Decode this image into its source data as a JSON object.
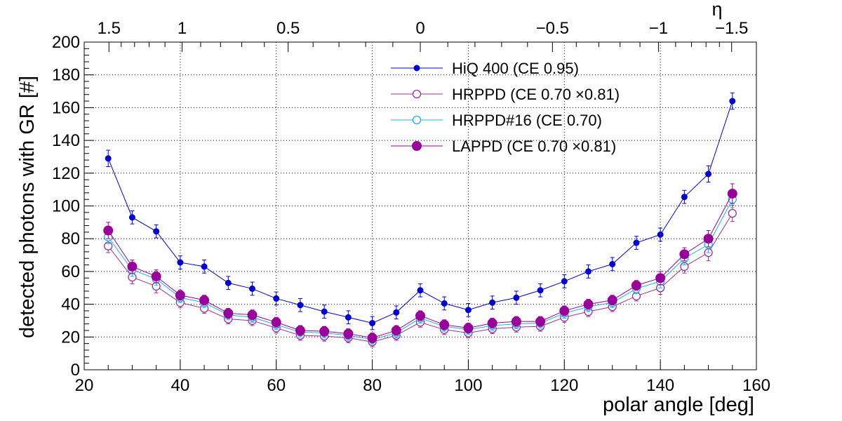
{
  "chart_data": {
    "type": "scatter",
    "xlabel": "polar angle [deg]",
    "ylabel": "detected photons with GR [#]",
    "top_axis_label": "η",
    "xlim": [
      20,
      160
    ],
    "ylim": [
      0,
      200
    ],
    "x_ticks": [
      "20",
      "40",
      "60",
      "80",
      "100",
      "120",
      "140",
      "160"
    ],
    "y_ticks": [
      "0",
      "20",
      "40",
      "60",
      "80",
      "100",
      "120",
      "140",
      "160",
      "180",
      "200"
    ],
    "top_ticks": [
      {
        "label": "1.5",
        "eta": 1.5
      },
      {
        "label": "1",
        "eta": 1.0
      },
      {
        "label": "0.5",
        "eta": 0.5
      },
      {
        "label": "0",
        "eta": 0.0
      },
      {
        "label": "−0.5",
        "eta": -0.5
      },
      {
        "label": "−1",
        "eta": -1.0
      },
      {
        "label": "−1.5",
        "eta": -1.5
      }
    ],
    "grid": true,
    "legend_position": "top-center",
    "x": [
      25,
      30,
      35,
      40,
      45,
      50,
      55,
      60,
      65,
      70,
      75,
      80,
      85,
      90,
      95,
      100,
      105,
      110,
      115,
      120,
      125,
      130,
      135,
      140,
      145,
      150,
      155
    ],
    "series": [
      {
        "name": "HiQ 400 (CE 0.95)",
        "color": "#0000cc",
        "marker": "filled-small",
        "values": [
          129,
          93,
          84.5,
          65.5,
          63,
          53,
          49.5,
          43.5,
          39.5,
          35.5,
          32,
          28.5,
          35,
          48.5,
          40.5,
          36.5,
          41,
          44,
          48.5,
          54,
          60,
          64.5,
          77.5,
          82.5,
          105.5,
          119.5,
          164
        ],
        "errors": [
          5,
          4,
          4,
          4,
          4,
          4,
          4,
          4,
          4,
          4,
          4,
          4,
          4,
          4,
          4,
          4,
          4,
          4,
          4,
          4,
          4,
          4,
          4,
          4,
          4,
          5,
          5
        ]
      },
      {
        "name": "HRPPD (CE 0.70  ×0.81)",
        "color": "#993399",
        "marker": "open",
        "values": [
          75.5,
          56.5,
          51,
          41,
          37.5,
          31,
          30,
          25.5,
          21,
          20.5,
          19.5,
          17,
          21,
          29,
          24.5,
          22.5,
          25,
          26,
          26.5,
          32,
          35.5,
          38.5,
          45,
          50,
          63,
          71.5,
          95.5
        ],
        "errors": [
          4,
          4,
          4,
          3,
          3,
          3,
          3,
          3,
          3,
          3,
          3,
          3,
          3,
          3,
          3,
          3,
          3,
          3,
          3,
          3,
          3,
          3,
          3,
          4,
          4,
          5,
          5
        ]
      },
      {
        "name": "HRPPD#16 (CE 0.70)",
        "color": "#1fb0e0",
        "marker": "open",
        "values": [
          81,
          61,
          55.5,
          44,
          41,
          33.5,
          32,
          27.5,
          23,
          22.5,
          21,
          18.5,
          22.5,
          31.5,
          26.5,
          24.5,
          27,
          28,
          28.5,
          34.5,
          38.5,
          41,
          49.5,
          54,
          68,
          76.5,
          104
        ],
        "errors": [
          4,
          4,
          4,
          3,
          3,
          3,
          3,
          3,
          3,
          3,
          3,
          3,
          3,
          3,
          3,
          3,
          3,
          3,
          3,
          3,
          3,
          3,
          3,
          4,
          4,
          5,
          5
        ]
      },
      {
        "name": "LAPPD (CE 0.70  ×0.81)",
        "color": "#990099",
        "marker": "filled-large",
        "values": [
          85,
          63,
          57,
          45.5,
          42.5,
          34.5,
          33.5,
          29,
          24,
          23.5,
          22,
          19.5,
          24,
          33,
          27.5,
          25.5,
          28.5,
          29.5,
          29.5,
          36,
          40,
          42.5,
          51.5,
          56,
          70.5,
          80,
          107.5
        ],
        "errors": [
          5,
          4,
          4,
          3,
          3,
          3,
          3,
          3,
          3,
          3,
          3,
          3,
          3,
          3,
          3,
          3,
          3,
          3,
          3,
          3,
          3,
          3,
          3,
          4,
          4,
          5,
          6
        ]
      }
    ]
  }
}
